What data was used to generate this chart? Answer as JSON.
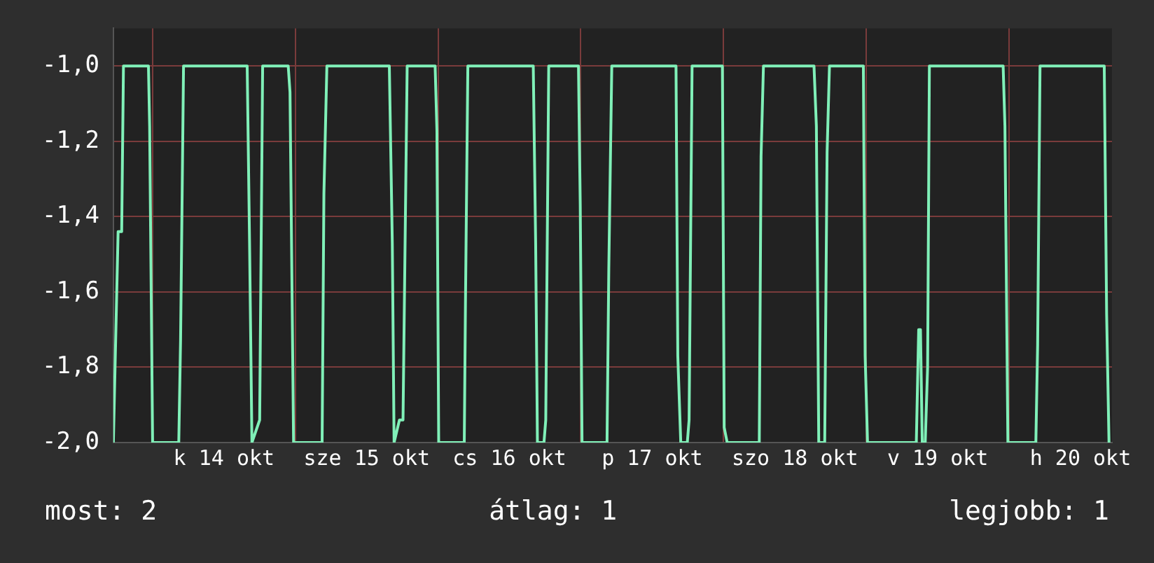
{
  "chart_data": {
    "type": "line",
    "x": [
      "--10-13T17:24",
      "--10-13T18:12",
      "--10-13T18:48",
      "--10-13T19:06",
      "--10-13T23:18",
      "--10-13T23:30",
      "--10-14T00:00",
      "--10-14T04:24",
      "--10-14T04:42",
      "--10-14T05:12",
      "--10-14T15:54",
      "--10-14T16:18",
      "--10-14T16:42",
      "--10-14T18:00",
      "--10-14T18:30",
      "--10-14T22:48",
      "--10-14T23:06",
      "--10-14T23:42",
      "--10-15T04:30",
      "--10-15T04:48",
      "--10-15T05:18",
      "--10-15T15:48",
      "--10-15T16:18",
      "--10-15T16:36",
      "--10-15T17:30",
      "--10-15T18:06",
      "--10-15T18:48",
      "--10-15T23:30",
      "--10-15T23:48",
      "--10-16T00:06",
      "--10-16T04:24",
      "--10-16T04:36",
      "--10-16T05:00",
      "--10-16T16:00",
      "--10-16T16:24",
      "--10-16T16:42",
      "--10-16T17:48",
      "--10-16T18:06",
      "--10-16T18:36",
      "--10-16T23:36",
      "--10-16T23:54",
      "--10-17T00:12",
      "--10-17T04:24",
      "--10-17T04:42",
      "--10-17T05:12",
      "--10-17T16:00",
      "--10-17T16:18",
      "--10-17T16:48",
      "--10-17T17:54",
      "--10-17T18:12",
      "--10-17T18:42",
      "--10-17T23:48",
      "--10-18T00:06",
      "--10-18T00:36",
      "--10-18T06:00",
      "--10-18T06:18",
      "--10-18T06:42",
      "--10-18T15:12",
      "--10-18T15:36",
      "--10-18T16:00",
      "--10-18T17:00",
      "--10-18T17:24",
      "--10-18T17:48",
      "--10-18T23:30",
      "--10-18T23:48",
      "--10-19T00:12",
      "--10-19T08:24",
      "--10-19T08:48",
      "--10-19T09:06",
      "--10-19T09:24",
      "--10-19T09:54",
      "--10-19T10:18",
      "--10-19T10:36",
      "--10-19T23:00",
      "--10-19T23:18",
      "--10-19T23:48",
      "--10-20T04:30",
      "--10-20T04:48",
      "--10-20T05:12",
      "--10-20T16:00",
      "--10-20T16:24",
      "--10-20T16:48"
    ],
    "series": [
      {
        "color": "#80f0b8",
        "values": [
          -2,
          -1.44,
          -1.44,
          -1,
          -1,
          -1.16,
          -2,
          -2,
          -1.73,
          -1,
          -1,
          -1.47,
          -2,
          -1.94,
          -1,
          -1,
          -1.07,
          -2,
          -2,
          -1.34,
          -1,
          -1,
          -1.47,
          -2,
          -1.94,
          -1.94,
          -1,
          -1,
          -1.17,
          -2,
          -2,
          -1.63,
          -1,
          -1,
          -1.47,
          -2,
          -2,
          -1.94,
          -1,
          -1,
          -1.37,
          -2,
          -2,
          -1.54,
          -1,
          -1,
          -1.77,
          -2,
          -2,
          -1.94,
          -1,
          -1,
          -1.96,
          -2,
          -2,
          -1.24,
          -1,
          -1,
          -1.16,
          -2,
          -2,
          -1.23,
          -1,
          -1,
          -1.77,
          -2,
          -2,
          -1.7,
          -1.7,
          -2,
          -2,
          -1.8,
          -1,
          -1,
          -1.16,
          -2,
          -2,
          -1.74,
          -1,
          -1,
          -1.66,
          -2
        ]
      }
    ],
    "xlim": [
      "--10-13T17:24",
      "--10-20T17:18"
    ],
    "xticks": [
      {
        "value": "--10-14T00:00",
        "label": null
      },
      {
        "value": "--10-14T12:00",
        "label": "k 14 okt"
      },
      {
        "value": "--10-15T00:00",
        "label": null
      },
      {
        "value": "--10-15T12:00",
        "label": "sze 15 okt"
      },
      {
        "value": "--10-16T00:00",
        "label": null
      },
      {
        "value": "--10-16T12:00",
        "label": "cs 16 okt"
      },
      {
        "value": "--10-17T00:00",
        "label": null
      },
      {
        "value": "--10-17T12:00",
        "label": "p 17 okt"
      },
      {
        "value": "--10-18T00:00",
        "label": null
      },
      {
        "value": "--10-18T12:00",
        "label": "szo 18 okt"
      },
      {
        "value": "--10-19T00:00",
        "label": null
      },
      {
        "value": "--10-19T12:00",
        "label": "v 19 okt"
      },
      {
        "value": "--10-20T00:00",
        "label": null
      },
      {
        "value": "--10-20T12:00",
        "label": "h 20 okt"
      }
    ],
    "ylim": [
      -2,
      -0.9
    ],
    "yticks": [
      {
        "value": -2,
        "label": "-2,0"
      },
      {
        "value": -1.8,
        "label": "-1,8"
      },
      {
        "value": -1.6,
        "label": "-1,6"
      },
      {
        "value": -1.4,
        "label": "-1,4"
      },
      {
        "value": -1.2,
        "label": "-1,2"
      },
      {
        "value": -1,
        "label": "-1,0"
      }
    ],
    "grid": true,
    "legend": false,
    "marker": "none",
    "line_style": "solid",
    "annotations": [
      "most: 2",
      "átlag: 1",
      "legjobb: 1"
    ]
  }
}
